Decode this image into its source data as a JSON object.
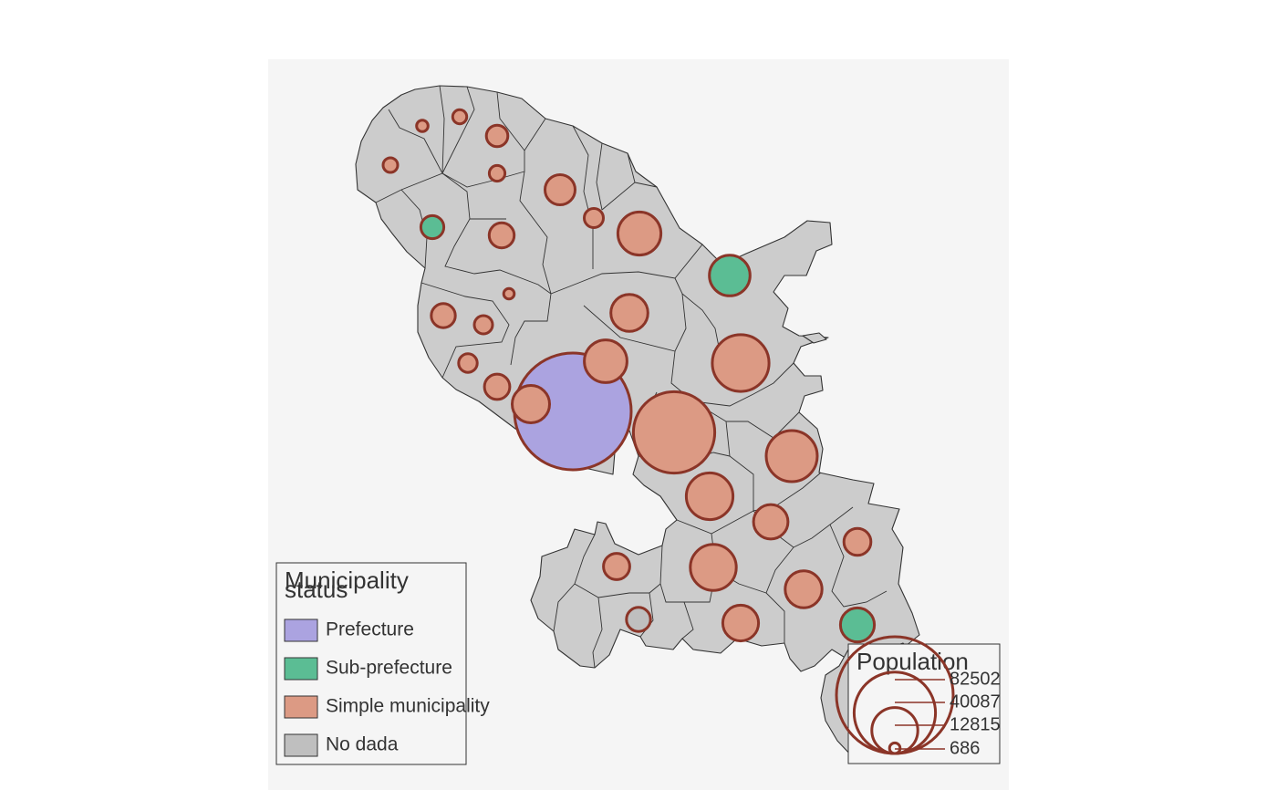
{
  "map": {
    "panel_background": "#f5f5f5",
    "land_fill": "#cccccc",
    "land_stroke": "#333333"
  },
  "status_legend": {
    "title_lines": [
      "Municipality",
      "status"
    ],
    "items": [
      {
        "label": "Prefecture",
        "color": "#aba3e0"
      },
      {
        "label": "Sub-prefecture",
        "color": "#5bbd94"
      },
      {
        "label": "Simple municipality",
        "color": "#dc9a84"
      },
      {
        "label": "No dada",
        "color": "#bfbfbf"
      }
    ]
  },
  "population_legend": {
    "title": "Population",
    "values": [
      82502,
      40087,
      12815,
      686
    ],
    "labels": [
      "82502",
      "40087",
      "12815",
      "686"
    ],
    "circle_stroke": "#8b3528"
  },
  "symbols": [
    {
      "status": "Prefecture",
      "population": 82502
    },
    {
      "status": "Simple municipality",
      "population": 40087
    },
    {
      "status": "Simple municipality",
      "population": 19500
    },
    {
      "status": "Simple municipality",
      "population": 15800
    },
    {
      "status": "Simple municipality",
      "population": 13200
    },
    {
      "status": "Simple municipality",
      "population": 12815
    },
    {
      "status": "Sub-prefecture",
      "population": 10000
    },
    {
      "status": "Simple municipality",
      "population": 11200
    },
    {
      "status": "Simple municipality",
      "population": 11000
    },
    {
      "status": "Simple municipality",
      "population": 8500
    },
    {
      "status": "Simple municipality",
      "population": 8300
    },
    {
      "status": "Simple municipality",
      "population": 8200
    },
    {
      "status": "Simple municipality",
      "population": 7700
    },
    {
      "status": "Simple municipality",
      "population": 7200
    },
    {
      "status": "Simple municipality",
      "population": 5500
    },
    {
      "status": "Simple municipality",
      "population": 4200
    },
    {
      "status": "Sub-prefecture",
      "population": 7000
    },
    {
      "status": "Simple municipality",
      "population": 4400
    },
    {
      "status": "Simple municipality",
      "population": 3900
    },
    {
      "status": "Simple municipality",
      "population": 3800
    },
    {
      "status": "Simple municipality",
      "population": 3500
    },
    {
      "status": "Simple municipality",
      "population": 2200
    },
    {
      "status": "Simple municipality",
      "population": 2800
    },
    {
      "status": "Simple municipality",
      "population": 2100
    },
    {
      "status": "Sub-prefecture",
      "population": 3200
    },
    {
      "status": "Simple municipality",
      "population": 2000
    },
    {
      "status": "Simple municipality",
      "population": 1500
    },
    {
      "status": "Simple municipality",
      "population": 1300
    },
    {
      "status": "Simple municipality",
      "population": 1200
    },
    {
      "status": "Simple municipality",
      "population": 800
    },
    {
      "status": "Simple municipality",
      "population": 686
    },
    {
      "status": "No dada",
      "population": 3500
    }
  ]
}
